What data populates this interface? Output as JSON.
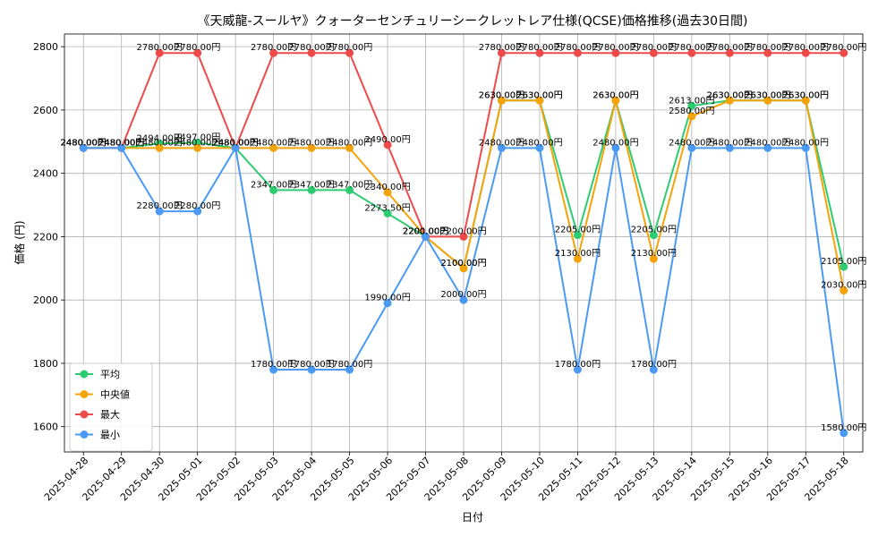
{
  "chart_data": {
    "type": "line",
    "title": "《天威龍-スールヤ》クォーターセンチュリーシークレットレア仕様(QCSE)価格推移(過去30日間)",
    "xlabel": "日付",
    "ylabel": "価格 (円)",
    "ylim": [
      1520,
      2840
    ],
    "yticks": [
      1600,
      1800,
      2000,
      2200,
      2400,
      2600,
      2800
    ],
    "grid": true,
    "legend_position": "bottom-left",
    "value_suffix": "円",
    "categories": [
      "2025-04-28",
      "2025-04-29",
      "2025-04-30",
      "2025-05-01",
      "2025-05-02",
      "2025-05-03",
      "2025-05-04",
      "2025-05-05",
      "2025-05-06",
      "2025-05-07",
      "2025-05-08",
      "2025-05-09",
      "2025-05-10",
      "2025-05-11",
      "2025-05-12",
      "2025-05-13",
      "2025-05-14",
      "2025-05-15",
      "2025-05-16",
      "2025-05-17",
      "2025-05-18"
    ],
    "series": [
      {
        "name": "平均",
        "color": "#2ecc71",
        "values": [
          2480,
          2480,
          2494,
          2497,
          2480,
          2347,
          2347,
          2347,
          2273.5,
          2200,
          2100,
          2630,
          2630,
          2205,
          2630,
          2205,
          2613,
          2630,
          2630,
          2630,
          2105
        ]
      },
      {
        "name": "中央値",
        "color": "#f5a30a",
        "values": [
          2480,
          2480,
          2480,
          2480,
          2480,
          2480,
          2480,
          2480,
          2340,
          2200,
          2100,
          2630,
          2630,
          2130,
          2630,
          2130,
          2580,
          2630,
          2630,
          2630,
          2030
        ]
      },
      {
        "name": "最大",
        "color": "#ef4a4a",
        "values": [
          2480,
          2480,
          2780,
          2780,
          2480,
          2780,
          2780,
          2780,
          2490,
          2200,
          2200,
          2780,
          2780,
          2780,
          2780,
          2780,
          2780,
          2780,
          2780,
          2780,
          2780
        ]
      },
      {
        "name": "最小",
        "color": "#4a9af5",
        "values": [
          2480,
          2480,
          2280,
          2280,
          2480,
          1780,
          1780,
          1780,
          1990,
          2200,
          2000,
          2480,
          2480,
          1780,
          2480,
          1780,
          2480,
          2480,
          2480,
          2480,
          1580
        ]
      }
    ]
  }
}
